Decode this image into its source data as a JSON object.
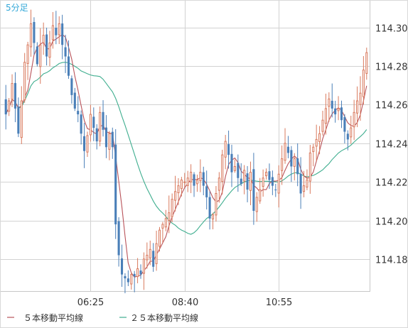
{
  "chart_data": {
    "type": "candlestick",
    "timeframe_label": "5分足",
    "x_tick_labels": [
      "06:25",
      "08:40",
      "10:55"
    ],
    "y_ticks": [
      114.18,
      114.2,
      114.22,
      114.24,
      114.26,
      114.28,
      114.3
    ],
    "y_tick_labels": [
      "114.18",
      "114.20",
      "114.22",
      "114.24",
      "114.26",
      "114.28",
      "114.30"
    ],
    "ylim": [
      114.1634,
      114.3139
    ],
    "grid": true,
    "bar_count": 116,
    "x_tick_indices": [
      27,
      57,
      87
    ],
    "up_color": "#d97a5e",
    "down_color": "#4a7fb8",
    "legend": [
      {
        "label": "５本移動平均線",
        "color": "#b9535a"
      },
      {
        "label": "２５本移動平均線",
        "color": "#3fae8f"
      }
    ],
    "seed_close": 114.262,
    "closes": [
      114.255,
      114.262,
      114.271,
      114.258,
      114.245,
      114.262,
      114.282,
      114.291,
      114.302,
      114.292,
      114.281,
      114.291,
      114.296,
      114.285,
      114.292,
      114.301,
      114.296,
      114.302,
      114.291,
      114.285,
      114.275,
      114.265,
      114.258,
      114.255,
      114.245,
      114.236,
      114.244,
      114.255,
      114.248,
      114.241,
      114.256,
      114.247,
      114.238,
      114.245,
      114.238,
      114.198,
      114.182,
      114.172,
      114.17,
      114.168,
      114.172,
      114.171,
      114.175,
      114.172,
      114.18,
      114.182,
      114.185,
      114.176,
      114.188,
      114.195,
      114.198,
      114.201,
      114.204,
      114.211,
      114.215,
      114.218,
      114.221,
      114.22,
      114.222,
      114.225,
      114.218,
      114.221,
      114.225,
      114.218,
      114.212,
      114.201,
      114.203,
      114.214,
      114.222,
      114.234,
      114.241,
      114.234,
      114.225,
      114.228,
      114.222,
      114.219,
      114.226,
      114.216,
      114.225,
      114.205,
      114.212,
      114.216,
      114.222,
      114.225,
      114.221,
      114.218,
      114.216,
      114.224,
      114.232,
      114.24,
      114.235,
      114.228,
      114.232,
      114.224,
      114.214,
      114.218,
      114.221,
      114.235,
      114.238,
      114.242,
      114.245,
      114.252,
      114.258,
      114.263,
      114.258,
      114.255,
      114.258,
      114.252,
      114.246,
      114.242,
      114.248,
      114.256,
      114.262,
      114.266,
      114.278,
      114.287
    ]
  },
  "legend": {
    "item_1_label": "５本移動平均線",
    "item_2_label": "２５本移動平均線"
  }
}
